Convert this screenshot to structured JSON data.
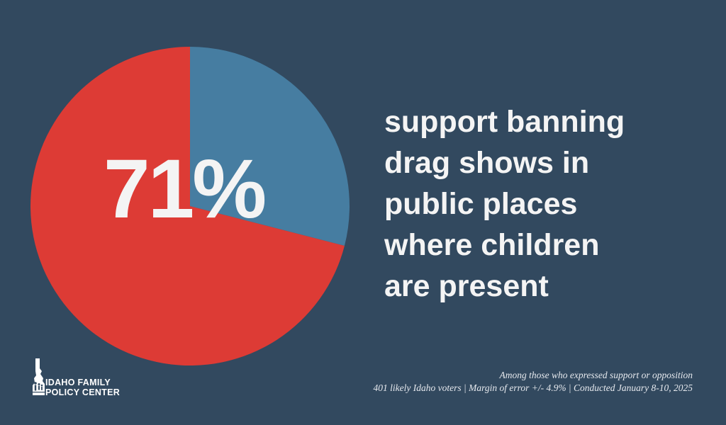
{
  "chart_data": {
    "type": "pie",
    "title": "support banning drag shows in public places where children are present",
    "data_label": "71%",
    "slices": [
      {
        "value": 71,
        "color": "#dd3b35"
      },
      {
        "value": 29,
        "color": "#467da1"
      }
    ]
  },
  "headline_lines": [
    "support banning",
    "drag shows in",
    "public places",
    "where children",
    "are present"
  ],
  "footnote": {
    "line1": "Among those who expressed support or opposition",
    "line2": "401 likely Idaho voters | Margin of error +/- 4.9% | Conducted January 8-10, 2025"
  },
  "logo": {
    "line1": "IDAHO FAMILY",
    "line2": "POLICY CENTER",
    "icon": "idaho-state-family-icon"
  },
  "colors": {
    "background": "#32495f",
    "support": "#dd3b35",
    "other": "#467da1",
    "text": "#f4f4f4"
  }
}
